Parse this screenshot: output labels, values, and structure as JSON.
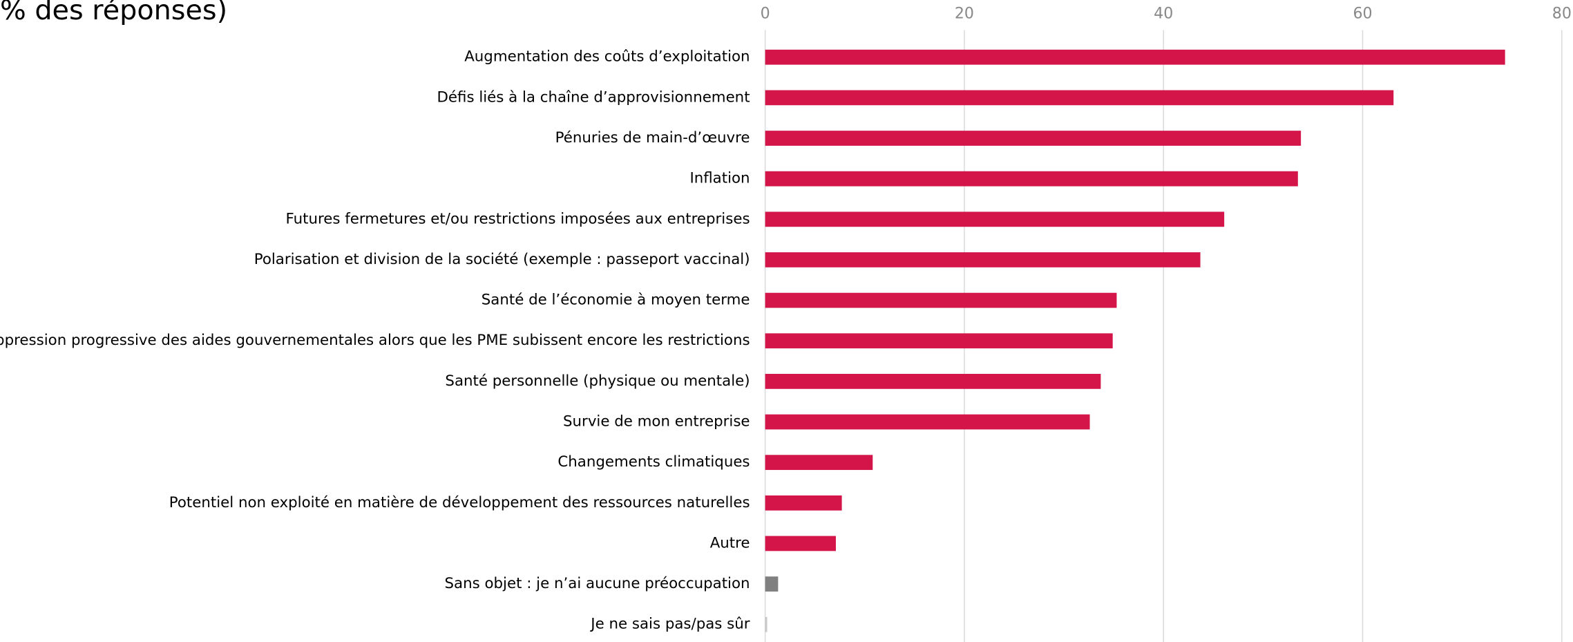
{
  "chart_data": {
    "type": "bar",
    "orientation": "horizontal",
    "title": "% des réponses)",
    "categories": [
      "Augmentation des coûts d’exploitation",
      "Défis liés à la chaîne d’approvisionnement",
      "Pénuries de main-d’œuvre",
      "Inflation",
      "Futures fermetures et/ou restrictions imposées aux entreprises",
      "Polarisation et division de la société (exemple : passeport vaccinal)",
      "Santé de l’économie à moyen terme",
      "Suppression progressive des aides gouvernementales alors que les PME subissent encore les restrictions",
      "Santé personnelle (physique ou mentale)",
      "Survie de mon entreprise",
      "Changements climatiques",
      "Potentiel non exploité en matière de développement des ressources naturelles",
      "Autre",
      "Sans objet : je n’ai aucune préoccupation",
      "Je ne sais pas/pas sûr"
    ],
    "values": [
      74.3,
      63.1,
      53.8,
      53.5,
      46.1,
      43.7,
      35.3,
      34.9,
      33.7,
      32.6,
      10.8,
      7.7,
      7.1,
      1.3,
      0.2
    ],
    "colors": [
      "#d4154a",
      "#d4154a",
      "#d4154a",
      "#d4154a",
      "#d4154a",
      "#d4154a",
      "#d4154a",
      "#d4154a",
      "#d4154a",
      "#d4154a",
      "#d4154a",
      "#d4154a",
      "#d4154a",
      "#808080",
      "#c8c8c8"
    ],
    "xlim": [
      0,
      80
    ],
    "xticks": [
      0,
      20,
      40,
      60,
      80
    ],
    "grid": true
  }
}
